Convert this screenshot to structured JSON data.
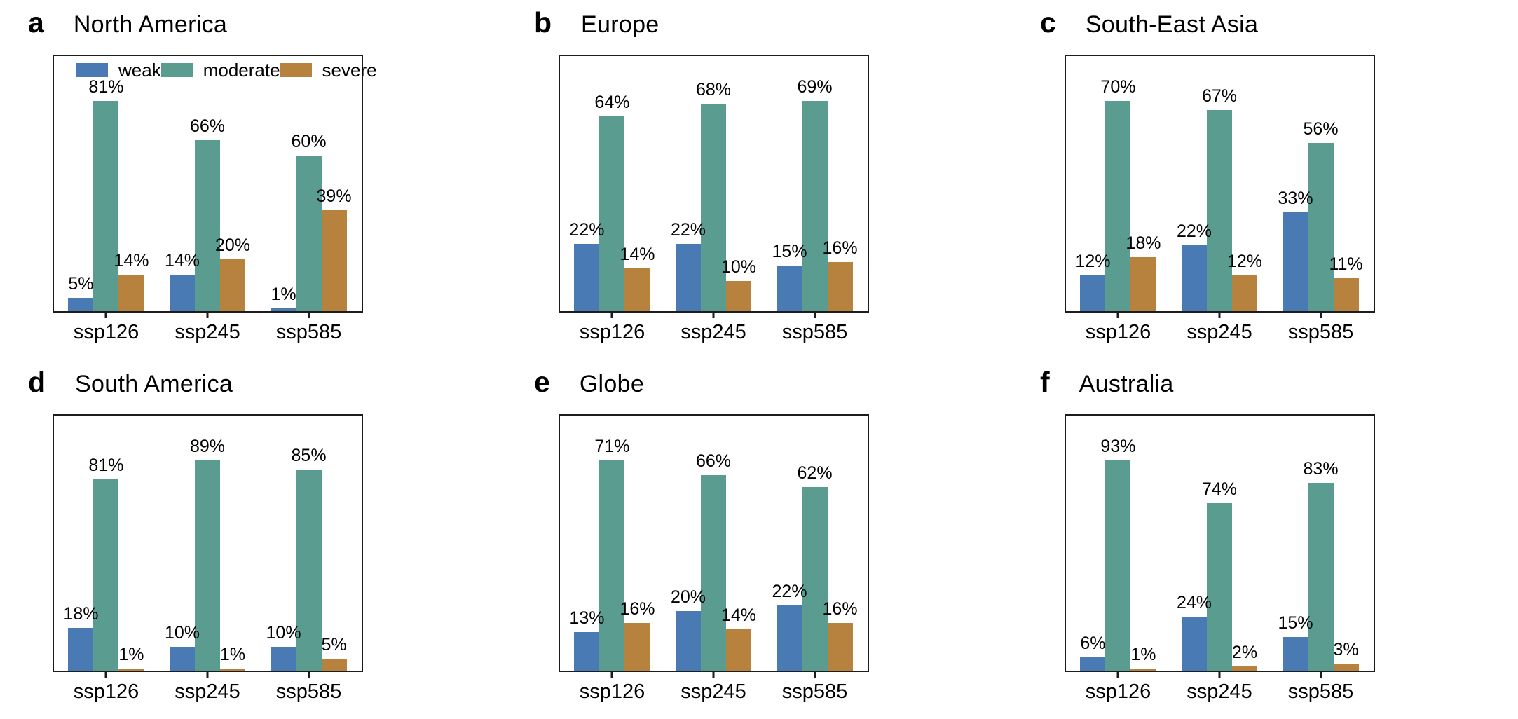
{
  "figure_name": "climate-scenario-intensity-bar-charts",
  "colors": {
    "weak": "#4a7ab4",
    "moderate": "#5a9d90",
    "severe": "#b6823d",
    "axis": "#1c1c1c"
  },
  "legend": {
    "items": [
      {
        "series": "weak",
        "label": "weak"
      },
      {
        "series": "moderate",
        "label": "moderate"
      },
      {
        "series": "severe",
        "label": "severe"
      }
    ]
  },
  "chart_data": [
    {
      "type": "bar",
      "panel_label": "a",
      "title": "North America",
      "categories": [
        "ssp126",
        "ssp245",
        "ssp585"
      ],
      "series": [
        {
          "name": "weak",
          "values": [
            5,
            14,
            1
          ]
        },
        {
          "name": "moderate",
          "values": [
            81,
            66,
            60
          ]
        },
        {
          "name": "severe",
          "values": [
            14,
            20,
            39
          ]
        }
      ],
      "value_suffix": "%",
      "ylim": [
        0,
        100
      ],
      "grid": false,
      "legend_position": "top-inside"
    },
    {
      "type": "bar",
      "panel_label": "b",
      "title": "Europe",
      "categories": [
        "ssp126",
        "ssp245",
        "ssp585"
      ],
      "series": [
        {
          "name": "weak",
          "values": [
            22,
            22,
            15
          ]
        },
        {
          "name": "moderate",
          "values": [
            64,
            68,
            69
          ]
        },
        {
          "name": "severe",
          "values": [
            14,
            10,
            16
          ]
        }
      ],
      "value_suffix": "%",
      "ylim": [
        0,
        100
      ],
      "grid": false,
      "legend_position": "none"
    },
    {
      "type": "bar",
      "panel_label": "c",
      "title": "South-East Asia",
      "categories": [
        "ssp126",
        "ssp245",
        "ssp585"
      ],
      "series": [
        {
          "name": "weak",
          "values": [
            12,
            22,
            33
          ]
        },
        {
          "name": "moderate",
          "values": [
            70,
            67,
            56
          ]
        },
        {
          "name": "severe",
          "values": [
            18,
            12,
            11
          ]
        }
      ],
      "value_suffix": "%",
      "ylim": [
        0,
        100
      ],
      "grid": false,
      "legend_position": "none"
    },
    {
      "type": "bar",
      "panel_label": "d",
      "title": "South America",
      "categories": [
        "ssp126",
        "ssp245",
        "ssp585"
      ],
      "series": [
        {
          "name": "weak",
          "values": [
            18,
            10,
            10
          ]
        },
        {
          "name": "moderate",
          "values": [
            81,
            89,
            85
          ]
        },
        {
          "name": "severe",
          "values": [
            1,
            1,
            5
          ]
        }
      ],
      "value_suffix": "%",
      "ylim": [
        0,
        100
      ],
      "grid": false,
      "legend_position": "none"
    },
    {
      "type": "bar",
      "panel_label": "e",
      "title": "Globe",
      "categories": [
        "ssp126",
        "ssp245",
        "ssp585"
      ],
      "series": [
        {
          "name": "weak",
          "values": [
            13,
            20,
            22
          ]
        },
        {
          "name": "moderate",
          "values": [
            71,
            66,
            62
          ]
        },
        {
          "name": "severe",
          "values": [
            16,
            14,
            16
          ]
        }
      ],
      "value_suffix": "%",
      "ylim": [
        0,
        100
      ],
      "grid": false,
      "legend_position": "none"
    },
    {
      "type": "bar",
      "panel_label": "f",
      "title": "Australia",
      "categories": [
        "ssp126",
        "ssp245",
        "ssp585"
      ],
      "series": [
        {
          "name": "weak",
          "values": [
            6,
            24,
            15
          ]
        },
        {
          "name": "moderate",
          "values": [
            93,
            74,
            83
          ]
        },
        {
          "name": "severe",
          "values": [
            1,
            2,
            3
          ]
        }
      ],
      "value_suffix": "%",
      "ylim": [
        0,
        100
      ],
      "grid": false,
      "legend_position": "none"
    }
  ]
}
